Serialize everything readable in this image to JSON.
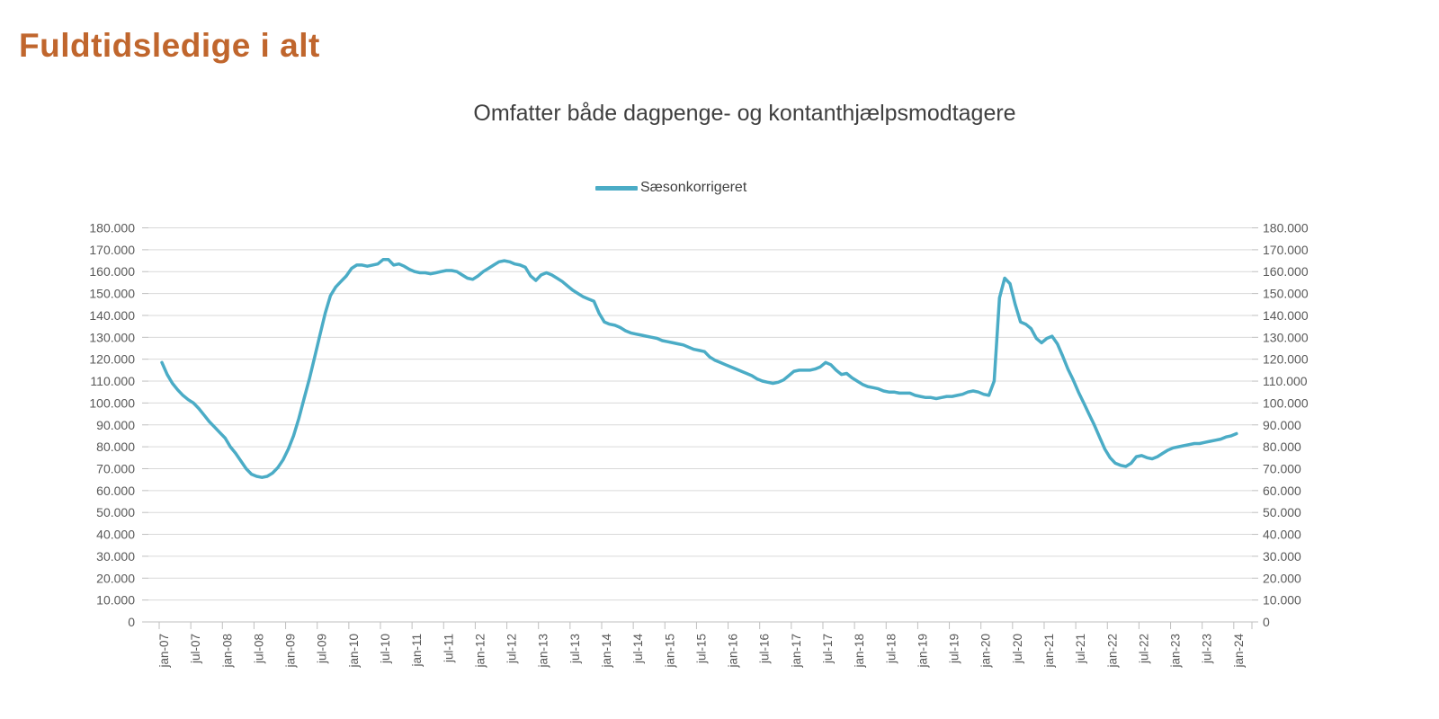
{
  "page": {
    "title": "Fuldtidsledige i alt",
    "title_color": "#C0662D"
  },
  "chart_data": {
    "type": "line",
    "title": "Omfatter både dagpenge- og kontanthjælpsmodtagere",
    "legend_position": "top",
    "grid": "horizontal",
    "ylim": [
      0,
      180000
    ],
    "y_axis_sides": [
      "left",
      "right"
    ],
    "y_ticks": [
      {
        "v": 0,
        "label": "0"
      },
      {
        "v": 10000,
        "label": "10.000"
      },
      {
        "v": 20000,
        "label": "20.000"
      },
      {
        "v": 30000,
        "label": "30.000"
      },
      {
        "v": 40000,
        "label": "40.000"
      },
      {
        "v": 50000,
        "label": "50.000"
      },
      {
        "v": 60000,
        "label": "60.000"
      },
      {
        "v": 70000,
        "label": "70.000"
      },
      {
        "v": 80000,
        "label": "80.000"
      },
      {
        "v": 90000,
        "label": "90.000"
      },
      {
        "v": 100000,
        "label": "100.000"
      },
      {
        "v": 110000,
        "label": "110.000"
      },
      {
        "v": 120000,
        "label": "120.000"
      },
      {
        "v": 130000,
        "label": "130.000"
      },
      {
        "v": 140000,
        "label": "140.000"
      },
      {
        "v": 150000,
        "label": "150.000"
      },
      {
        "v": 160000,
        "label": "160.000"
      },
      {
        "v": 170000,
        "label": "170.000"
      },
      {
        "v": 180000,
        "label": "180.000"
      }
    ],
    "x_tick_labels": [
      "jan-07",
      "jul-07",
      "jan-08",
      "jul-08",
      "jan-09",
      "jul-09",
      "jan-10",
      "jul-10",
      "jan-11",
      "jul-11",
      "jan-12",
      "jul-12",
      "jan-13",
      "jul-13",
      "jan-14",
      "jul-14",
      "jan-15",
      "jul-15",
      "jan-16",
      "jul-16",
      "jan-17",
      "jul-17",
      "jan-18",
      "jul-18",
      "jan-19",
      "jul-19",
      "jan-20",
      "jul-20",
      "jan-21",
      "jul-21",
      "jan-22",
      "jul-22",
      "jan-23",
      "jul-23",
      "jan-24"
    ],
    "x_start_month": "2007-01",
    "x_interval_months": 1,
    "colors": {
      "line": "#4BACC6",
      "gridline": "#D9D9D9",
      "axis": "#BFBFBF",
      "tick_label": "#595959"
    },
    "series": [
      {
        "name": "Sæsonkorrigeret",
        "color": "#4BACC6",
        "values": [
          118500,
          113000,
          109000,
          106000,
          103500,
          101500,
          100000,
          97500,
          94500,
          91500,
          89000,
          86500,
          84000,
          80000,
          77000,
          73500,
          70000,
          67500,
          66500,
          66000,
          66500,
          68000,
          70500,
          74000,
          79000,
          85000,
          93000,
          102000,
          111000,
          121000,
          131000,
          141000,
          149000,
          153000,
          155500,
          158000,
          161500,
          163000,
          163000,
          162500,
          163000,
          163500,
          165500,
          165500,
          163000,
          163500,
          162500,
          161000,
          160000,
          159500,
          159500,
          159000,
          159500,
          160000,
          160500,
          160500,
          160000,
          158500,
          157000,
          156500,
          158000,
          160000,
          161500,
          163000,
          164500,
          165000,
          164500,
          163500,
          163000,
          162000,
          158000,
          156000,
          158500,
          159500,
          158500,
          157000,
          155500,
          153500,
          151500,
          150000,
          148500,
          147500,
          146500,
          141000,
          137000,
          136000,
          135500,
          134500,
          133000,
          132000,
          131500,
          131000,
          130500,
          130000,
          129500,
          128500,
          128000,
          127500,
          127000,
          126500,
          125500,
          124500,
          124000,
          123500,
          121000,
          119500,
          118500,
          117500,
          116500,
          115500,
          114500,
          113500,
          112500,
          111000,
          110000,
          109500,
          109000,
          109500,
          110500,
          112500,
          114500,
          115000,
          115000,
          115000,
          115500,
          116500,
          118500,
          117500,
          115000,
          113000,
          113500,
          111500,
          110000,
          108500,
          107500,
          107000,
          106500,
          105500,
          105000,
          105000,
          104500,
          104500,
          104500,
          103500,
          103000,
          102500,
          102500,
          102000,
          102500,
          103000,
          103000,
          103500,
          104000,
          105000,
          105500,
          105000,
          104000,
          103500,
          110000,
          148000,
          157000,
          154500,
          145000,
          137000,
          136000,
          134000,
          129500,
          127500,
          129500,
          130500,
          127000,
          121500,
          115500,
          110500,
          105000,
          100000,
          95000,
          90000,
          84500,
          79000,
          75000,
          72500,
          71500,
          71000,
          72500,
          75500,
          76000,
          75000,
          74500,
          75500,
          77000,
          78500,
          79500,
          80000,
          80500,
          81000,
          81500,
          81500,
          82000,
          82500,
          83000,
          83500,
          84500,
          85000,
          86000
        ]
      }
    ]
  }
}
